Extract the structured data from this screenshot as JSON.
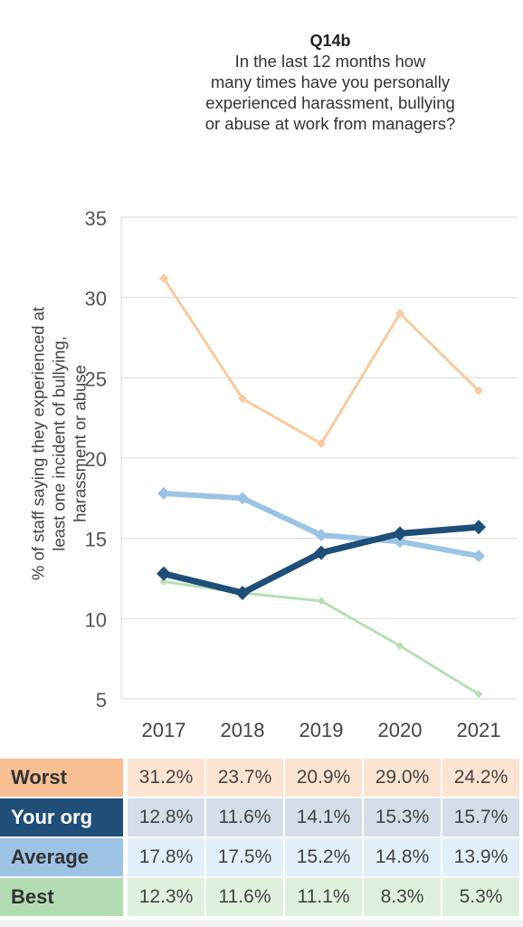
{
  "question": {
    "code": "Q14b",
    "lines": [
      "In the last 12 months how",
      "many times have you personally",
      "experienced harassment, bullying",
      "or abuse at work from managers?"
    ]
  },
  "chart_data": {
    "type": "line",
    "title": "Q14b",
    "ylabel": "% of staff saying they experienced at least one incident of bullying, harassment or abuse",
    "ylabel_lines": [
      "% of staff saying they experienced at",
      "least one incident of bullying,",
      "harassment or abuse"
    ],
    "x": [
      "2017",
      "2018",
      "2019",
      "2020",
      "2021"
    ],
    "ylim": [
      5,
      35
    ],
    "yticks": [
      "35",
      "30",
      "25",
      "20",
      "15",
      "10",
      "5"
    ],
    "grid": true,
    "series": [
      {
        "name": "Worst",
        "values": [
          31.2,
          23.7,
          20.9,
          29.0,
          24.2
        ],
        "color": "#f9c9a0",
        "label_color": "#f7bf92",
        "row_color": "#fde4d2"
      },
      {
        "name": "Your org",
        "values": [
          12.8,
          11.6,
          14.1,
          15.3,
          15.7
        ],
        "color": "#1f4e79",
        "label_color": "#1f4e79",
        "row_color": "#d4dde8"
      },
      {
        "name": "Average",
        "values": [
          17.8,
          17.5,
          15.2,
          14.8,
          13.9
        ],
        "color": "#9cc3e4",
        "label_color": "#9cc3e4",
        "row_color": "#e2eef8"
      },
      {
        "name": "Best",
        "values": [
          12.3,
          11.6,
          11.1,
          8.3,
          5.3
        ],
        "color": "#b7dfb5",
        "label_color": "#b4dcb3",
        "row_color": "#e0f0de"
      }
    ]
  },
  "table": {
    "rows": [
      {
        "label": "Worst",
        "cells": [
          "31.2%",
          "23.7%",
          "20.9%",
          "29.0%",
          "24.2%"
        ]
      },
      {
        "label": "Your org",
        "cells": [
          "12.8%",
          "11.6%",
          "14.1%",
          "15.3%",
          "15.7%"
        ]
      },
      {
        "label": "Average",
        "cells": [
          "17.8%",
          "17.5%",
          "15.2%",
          "14.8%",
          "13.9%"
        ]
      },
      {
        "label": "Best",
        "cells": [
          "12.3%",
          "11.6%",
          "11.1%",
          "8.3%",
          "5.3%"
        ]
      }
    ]
  }
}
